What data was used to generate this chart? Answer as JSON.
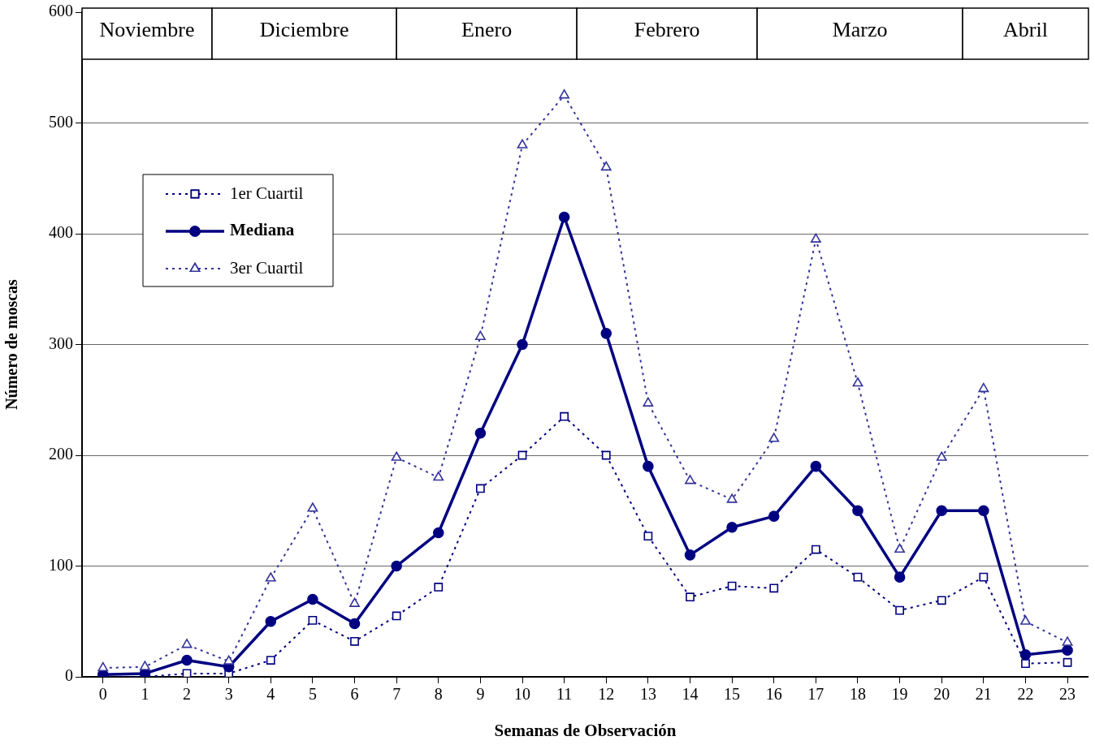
{
  "chart_data": {
    "type": "line",
    "xlabel": "Semanas de Observación",
    "ylabel": "Número de moscas",
    "x": [
      0,
      1,
      2,
      3,
      4,
      5,
      6,
      7,
      8,
      9,
      10,
      11,
      12,
      13,
      14,
      15,
      16,
      17,
      18,
      19,
      20,
      21,
      22,
      23
    ],
    "xlim": [
      -0.5,
      23.5
    ],
    "xticks": [
      0,
      1,
      2,
      3,
      4,
      5,
      6,
      7,
      8,
      9,
      10,
      11,
      12,
      13,
      14,
      15,
      16,
      17,
      18,
      19,
      20,
      21,
      22,
      23
    ],
    "ylim": [
      0,
      600
    ],
    "yticks": [
      0,
      100,
      200,
      300,
      400,
      500,
      600
    ],
    "grid": "y",
    "legend": "top left",
    "series": [
      {
        "name": "1er Cuartil",
        "color": "#000080",
        "marker": "square",
        "line_style": "dotted",
        "values": [
          0,
          0,
          3,
          3,
          15,
          51,
          32,
          55,
          81,
          170,
          200,
          235,
          200,
          127,
          72,
          82,
          80,
          115,
          90,
          60,
          69,
          90,
          12,
          13
        ]
      },
      {
        "name": "Mediana",
        "color": "#000080",
        "marker": "circle",
        "line_style": "solid",
        "values": [
          2,
          3,
          15,
          9,
          50,
          70,
          48,
          100,
          130,
          220,
          300,
          415,
          310,
          190,
          110,
          135,
          145,
          190,
          150,
          90,
          150,
          150,
          20,
          24
        ]
      },
      {
        "name": "3er Cuartil",
        "color": "#333399",
        "marker": "triangle",
        "line_style": "dotted",
        "values": [
          8,
          9,
          29,
          14,
          89,
          152,
          66,
          198,
          180,
          307,
          480,
          525,
          460,
          247,
          177,
          160,
          215,
          395,
          265,
          115,
          198,
          260,
          50,
          31
        ]
      }
    ],
    "bands": [
      {
        "axis": "x",
        "from": -0.5,
        "to": 2.6,
        "label": "Noviembre",
        "color": "#ffffff"
      },
      {
        "axis": "x",
        "from": 2.6,
        "to": 7,
        "label": "Diciembre",
        "color": "#ffffff"
      },
      {
        "axis": "x",
        "from": 7,
        "to": 11.3,
        "label": "Enero",
        "color": "#ffffff"
      },
      {
        "axis": "x",
        "from": 11.3,
        "to": 15.6,
        "label": "Febrero",
        "color": "#ffffff"
      },
      {
        "axis": "x",
        "from": 15.6,
        "to": 20.5,
        "label": "Marzo",
        "color": "#ffffff"
      },
      {
        "axis": "x",
        "from": 20.5,
        "to": 23.5,
        "label": "Abril",
        "color": "#ffffff"
      }
    ]
  }
}
